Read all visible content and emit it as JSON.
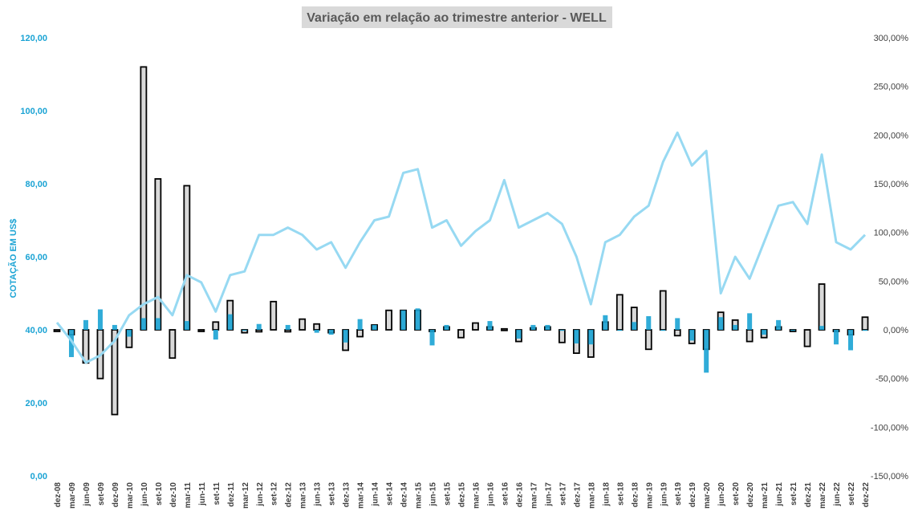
{
  "chart_data": {
    "type": "bar+line",
    "title": "Variação em relação ao trimestre anterior - WELL",
    "ylabel_left": "COTAÇÃO EM US$",
    "ylim_left": [
      0,
      120
    ],
    "ylim_right": [
      -150,
      300
    ],
    "left_ticks": [
      "0,00",
      "20,00",
      "40,00",
      "60,00",
      "80,00",
      "100,00",
      "120,00"
    ],
    "right_ticks": [
      "-150,00%",
      "-100,00%",
      "-50,00%",
      "0,00%",
      "50,00%",
      "100,00%",
      "150,00%",
      "200,00%",
      "250,00%",
      "300,00%"
    ],
    "grid": false,
    "x_labels": [
      "dez-08",
      "mar-09",
      "jun-09",
      "set-09",
      "dez-09",
      "mar-10",
      "jun-10",
      "set-10",
      "dez-10",
      "mar-11",
      "jun-11",
      "set-11",
      "dez-11",
      "mar-12",
      "jun-12",
      "set-12",
      "dez-12",
      "mar-13",
      "jun-13",
      "set-13",
      "dez-13",
      "mar-14",
      "jun-14",
      "set-14",
      "dez-14",
      "mar-15",
      "jun-15",
      "set-15",
      "dez-15",
      "mar-16",
      "jun-16",
      "set-16",
      "dez-16",
      "mar-17",
      "jun-17",
      "set-17",
      "dez-17",
      "mar-18",
      "jun-18",
      "set-18",
      "dez-18",
      "mar-19",
      "jun-19",
      "set-19",
      "dez-19",
      "mar-20",
      "jun-20",
      "set-20",
      "dez-20",
      "mar-21",
      "jun-21",
      "set-21",
      "dez-21",
      "mar-22",
      "jun-22",
      "set-22",
      "dez-22"
    ],
    "series": [
      {
        "name": "",
        "axis": "right",
        "style": "outlined-bar",
        "color": "#d9d9d9",
        "values": [
          0,
          -5,
          -34,
          -50,
          -87,
          -18,
          270,
          155,
          -29,
          148,
          -1,
          8,
          30,
          -3,
          -2,
          29,
          -2,
          11,
          6,
          -3,
          -21,
          -7,
          5,
          20,
          20,
          20,
          -1,
          3,
          -8,
          7,
          3,
          1,
          -12,
          2,
          3,
          -13,
          -24,
          -28,
          8,
          36,
          23,
          -20,
          40,
          -6,
          -14,
          -20,
          18,
          10,
          -12,
          -8,
          3,
          -1,
          -17,
          47,
          -1,
          -5,
          13
        ]
      },
      {
        "name": "",
        "axis": "right",
        "style": "bar",
        "color": "#1aa3d4",
        "values": [
          0,
          -28,
          10,
          21,
          5,
          -7,
          12,
          12,
          0,
          9,
          0,
          -10,
          16,
          -1,
          6,
          0,
          5,
          0,
          -3,
          -5,
          -13,
          11,
          5,
          0,
          20,
          22,
          -16,
          5,
          0,
          0,
          9,
          0,
          -9,
          5,
          5,
          -1,
          -14,
          -15,
          15,
          -1,
          8,
          14,
          -1,
          12,
          -11,
          -44,
          13,
          5,
          17,
          -5,
          10,
          -1,
          0,
          4,
          -15,
          -21,
          -1
        ]
      },
      {
        "name": "",
        "axis": "left",
        "style": "line",
        "color": "#97d9f2",
        "values": [
          42,
          37,
          31,
          33,
          37,
          44,
          47,
          49,
          44,
          55,
          53,
          45,
          55,
          56,
          66,
          66,
          68,
          66,
          62,
          64,
          57,
          64,
          70,
          71,
          83,
          84,
          68,
          70,
          63,
          67,
          70,
          81,
          68,
          70,
          72,
          69,
          60,
          47,
          64,
          66,
          71,
          74,
          86,
          94,
          85,
          89,
          50,
          60,
          54,
          64,
          74,
          75,
          69,
          88,
          64,
          62,
          66
        ]
      }
    ]
  }
}
